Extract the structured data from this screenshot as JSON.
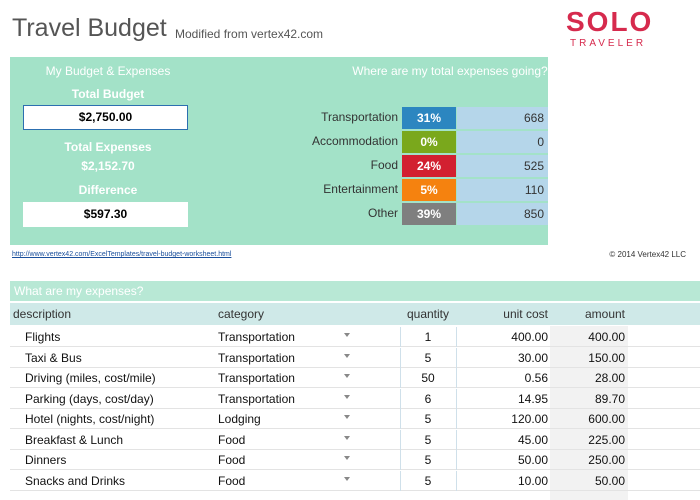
{
  "header": {
    "title": "Travel Budget",
    "subtitle": "Modified from vertex42.com",
    "logo_main": "SOLO",
    "logo_sub": "TRAVELER"
  },
  "summary": {
    "heading": "My Budget & Expenses",
    "budget_label": "Total Budget",
    "budget": "$2,750.00",
    "expenses_label": "Total Expenses",
    "expenses": "$2,152.70",
    "difference_label": "Difference",
    "difference": "$597.30"
  },
  "breakdown": {
    "heading": "Where are my total expenses going?",
    "rows": [
      {
        "category": "Transportation",
        "percent": "31%",
        "amount": "668",
        "color": "#2c86c0"
      },
      {
        "category": "Accommodation",
        "percent": "0%",
        "amount": "0",
        "color": "#7aa81c"
      },
      {
        "category": "Food",
        "percent": "24%",
        "amount": "525",
        "color": "#d22030"
      },
      {
        "category": "Entertainment",
        "percent": "5%",
        "amount": "110",
        "color": "#f5820f"
      },
      {
        "category": "Other",
        "percent": "39%",
        "amount": "850",
        "color": "#7f7f7f"
      }
    ]
  },
  "footer": {
    "link": "http://www.vertex42.com/ExcelTemplates/travel-budget-worksheet.html",
    "copyright": "© 2014 Vertex42 LLC"
  },
  "table": {
    "heading": "What are my expenses?",
    "columns": [
      "description",
      "category",
      "quantity",
      "unit cost",
      "amount"
    ],
    "rows": [
      [
        "Flights",
        "Transportation",
        "1",
        "400.00",
        "400.00"
      ],
      [
        "Taxi & Bus",
        "Transportation",
        "5",
        "30.00",
        "150.00"
      ],
      [
        "Driving (miles, cost/mile)",
        "Transportation",
        "50",
        "0.56",
        "28.00"
      ],
      [
        "Parking (days, cost/day)",
        "Transportation",
        "6",
        "14.95",
        "89.70"
      ],
      [
        "Hotel (nights, cost/night)",
        "Lodging",
        "5",
        "120.00",
        "600.00"
      ],
      [
        "Breakfast & Lunch",
        "Food",
        "5",
        "45.00",
        "225.00"
      ],
      [
        "Dinners",
        "Food",
        "5",
        "50.00",
        "250.00"
      ],
      [
        "Snacks and Drinks",
        "Food",
        "5",
        "10.00",
        "50.00"
      ]
    ]
  }
}
